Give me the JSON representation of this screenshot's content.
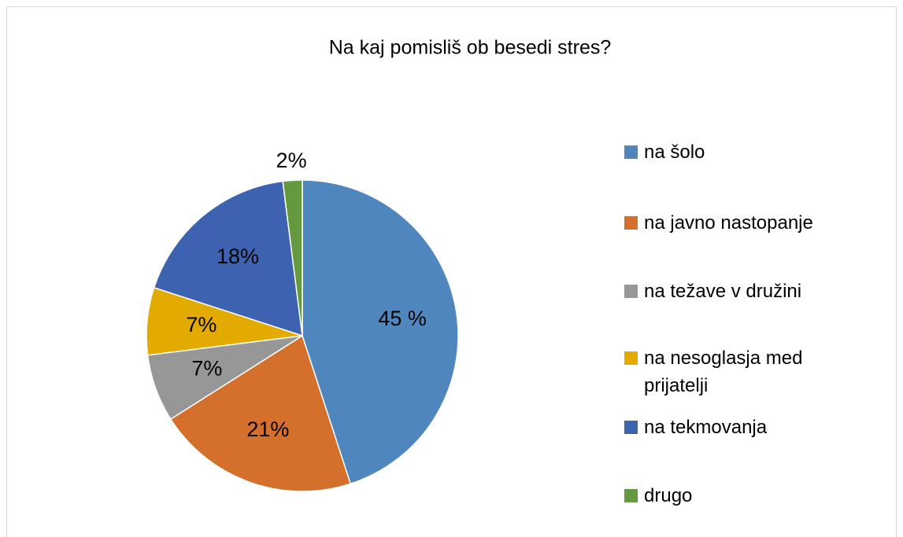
{
  "chart_data": {
    "type": "pie",
    "title": "Na kaj pomisliš ob besedi stres?",
    "categories": [
      "na šolo",
      "na javno nastopanje",
      "na težave v družini",
      "na nesoglasja med prijatelji",
      "na tekmovanja",
      "drugo"
    ],
    "values": [
      45,
      21,
      7,
      7,
      18,
      2
    ],
    "value_labels": [
      "45 %",
      "21%",
      "7%",
      "7%",
      "18%",
      "2%"
    ],
    "colors": [
      "#4f86be",
      "#d4702b",
      "#979797",
      "#e3aa00",
      "#3d62af",
      "#65993f"
    ],
    "legend": "right"
  }
}
